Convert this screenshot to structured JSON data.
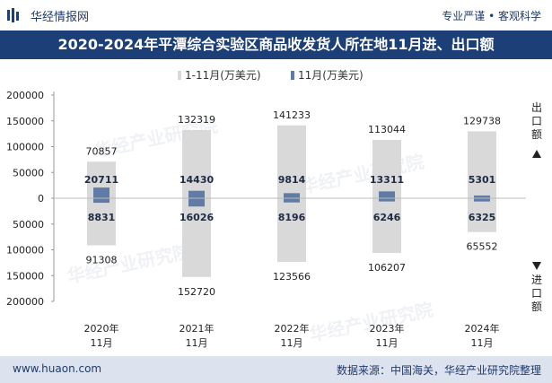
{
  "header": {
    "brand": "华经情报网",
    "tagline": "专业严谨 • 客观科学"
  },
  "footer": {
    "website": "www.huaon.com",
    "source": "数据来源：中国海关，华经产业研究院整理"
  },
  "watermark": "华经产业研究院",
  "colors": {
    "accent": "#1d3f77",
    "cumulative": "#d9d9d9",
    "monthly": "#5f7ba6"
  },
  "chart_data": {
    "type": "bar",
    "title": "2020-2024年平潭综合实验区商品收发货人所在地11月进、出口额",
    "categories": [
      "2020年\n11月",
      "2021年\n11月",
      "2022年\n11月",
      "2023年\n11月",
      "2024年\n11月"
    ],
    "ylim": [
      -200000,
      200000
    ],
    "yticks": [
      200000,
      150000,
      100000,
      50000,
      0,
      50000,
      100000,
      150000,
      200000
    ],
    "xlabel": "",
    "ylabel_top": "出口额",
    "ylabel_bottom": "进口额",
    "legend_position": "top",
    "series": [
      {
        "name": "1-11月(万美元)",
        "export": [
          70857,
          132319,
          141233,
          113044,
          129738
        ],
        "import": [
          91308,
          152720,
          123566,
          106207,
          65552
        ]
      },
      {
        "name": "11月(万美元)",
        "export": [
          20711,
          14430,
          9814,
          13311,
          5301
        ],
        "import": [
          8831,
          16026,
          8196,
          6246,
          6325
        ]
      }
    ]
  }
}
